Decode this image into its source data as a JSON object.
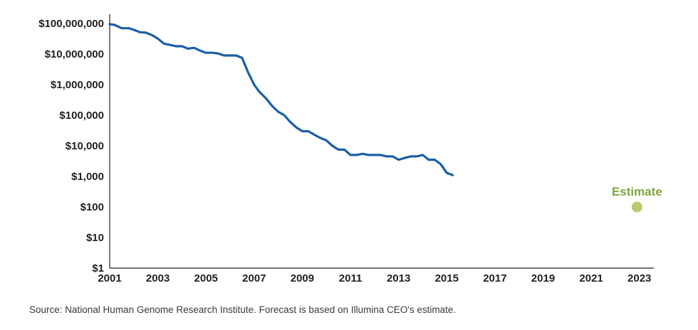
{
  "chart_data": {
    "type": "line",
    "title": "",
    "xlabel": "",
    "ylabel": "",
    "y_scale": "log",
    "xlim": [
      2001,
      2023.6
    ],
    "ylim": [
      1,
      100000000
    ],
    "x_ticks": [
      2001,
      2003,
      2005,
      2007,
      2009,
      2011,
      2013,
      2015,
      2017,
      2019,
      2021,
      2023
    ],
    "x_tick_labels": [
      "2001",
      "2003",
      "2005",
      "2007",
      "2009",
      "2011",
      "2013",
      "2015",
      "2017",
      "2019",
      "2021",
      "2023"
    ],
    "y_ticks": [
      1,
      10,
      100,
      1000,
      10000,
      100000,
      1000000,
      10000000,
      100000000
    ],
    "y_tick_labels": [
      "$1",
      "$10",
      "$100",
      "$1,000",
      "$10,000",
      "$100,000",
      "$1,000,000",
      "$10,000,000",
      "$100,000,000"
    ],
    "grid": false,
    "series": [
      {
        "color": "#1a5fa8",
        "x": [
          2001.0,
          2001.2,
          2001.5,
          2001.8,
          2002.0,
          2002.25,
          2002.5,
          2002.75,
          2003.0,
          2003.25,
          2003.5,
          2003.75,
          2004.0,
          2004.25,
          2004.5,
          2004.75,
          2005.0,
          2005.25,
          2005.5,
          2005.75,
          2006.0,
          2006.25,
          2006.5,
          2006.75,
          2007.0,
          2007.2,
          2007.5,
          2007.75,
          2008.0,
          2008.25,
          2008.5,
          2008.75,
          2009.0,
          2009.25,
          2009.5,
          2009.75,
          2010.0,
          2010.25,
          2010.5,
          2010.75,
          2011.0,
          2011.25,
          2011.5,
          2011.75,
          2012.0,
          2012.25,
          2012.5,
          2012.75,
          2013.0,
          2013.25,
          2013.5,
          2013.75,
          2014.0,
          2014.25,
          2014.5,
          2014.75,
          2015.0,
          2015.25
        ],
        "values": [
          95000000,
          90000000,
          70000000,
          70000000,
          62000000,
          52000000,
          50000000,
          42000000,
          32000000,
          22000000,
          20000000,
          18000000,
          18000000,
          15000000,
          16000000,
          13000000,
          11000000,
          11000000,
          10500000,
          9000000,
          9000000,
          9000000,
          7500000,
          2500000,
          1000000,
          600000,
          350000,
          200000,
          130000,
          100000,
          60000,
          40000,
          30000,
          30000,
          23000,
          18000,
          15000,
          10000,
          7500,
          7500,
          5000,
          5000,
          5500,
          5000,
          5000,
          5000,
          4500,
          4500,
          3500,
          4000,
          4500,
          4500,
          5000,
          3500,
          3500,
          2500,
          1300,
          1100
        ]
      }
    ],
    "annotations": [
      {
        "label": "Estimate",
        "x": 2022.9,
        "value": 100,
        "color": "#7fa540",
        "marker_color": "#b9c96f"
      }
    ]
  },
  "source_text": "Source: National Human Genome Research Institute. Forecast is based on Illumina CEO's estimate."
}
